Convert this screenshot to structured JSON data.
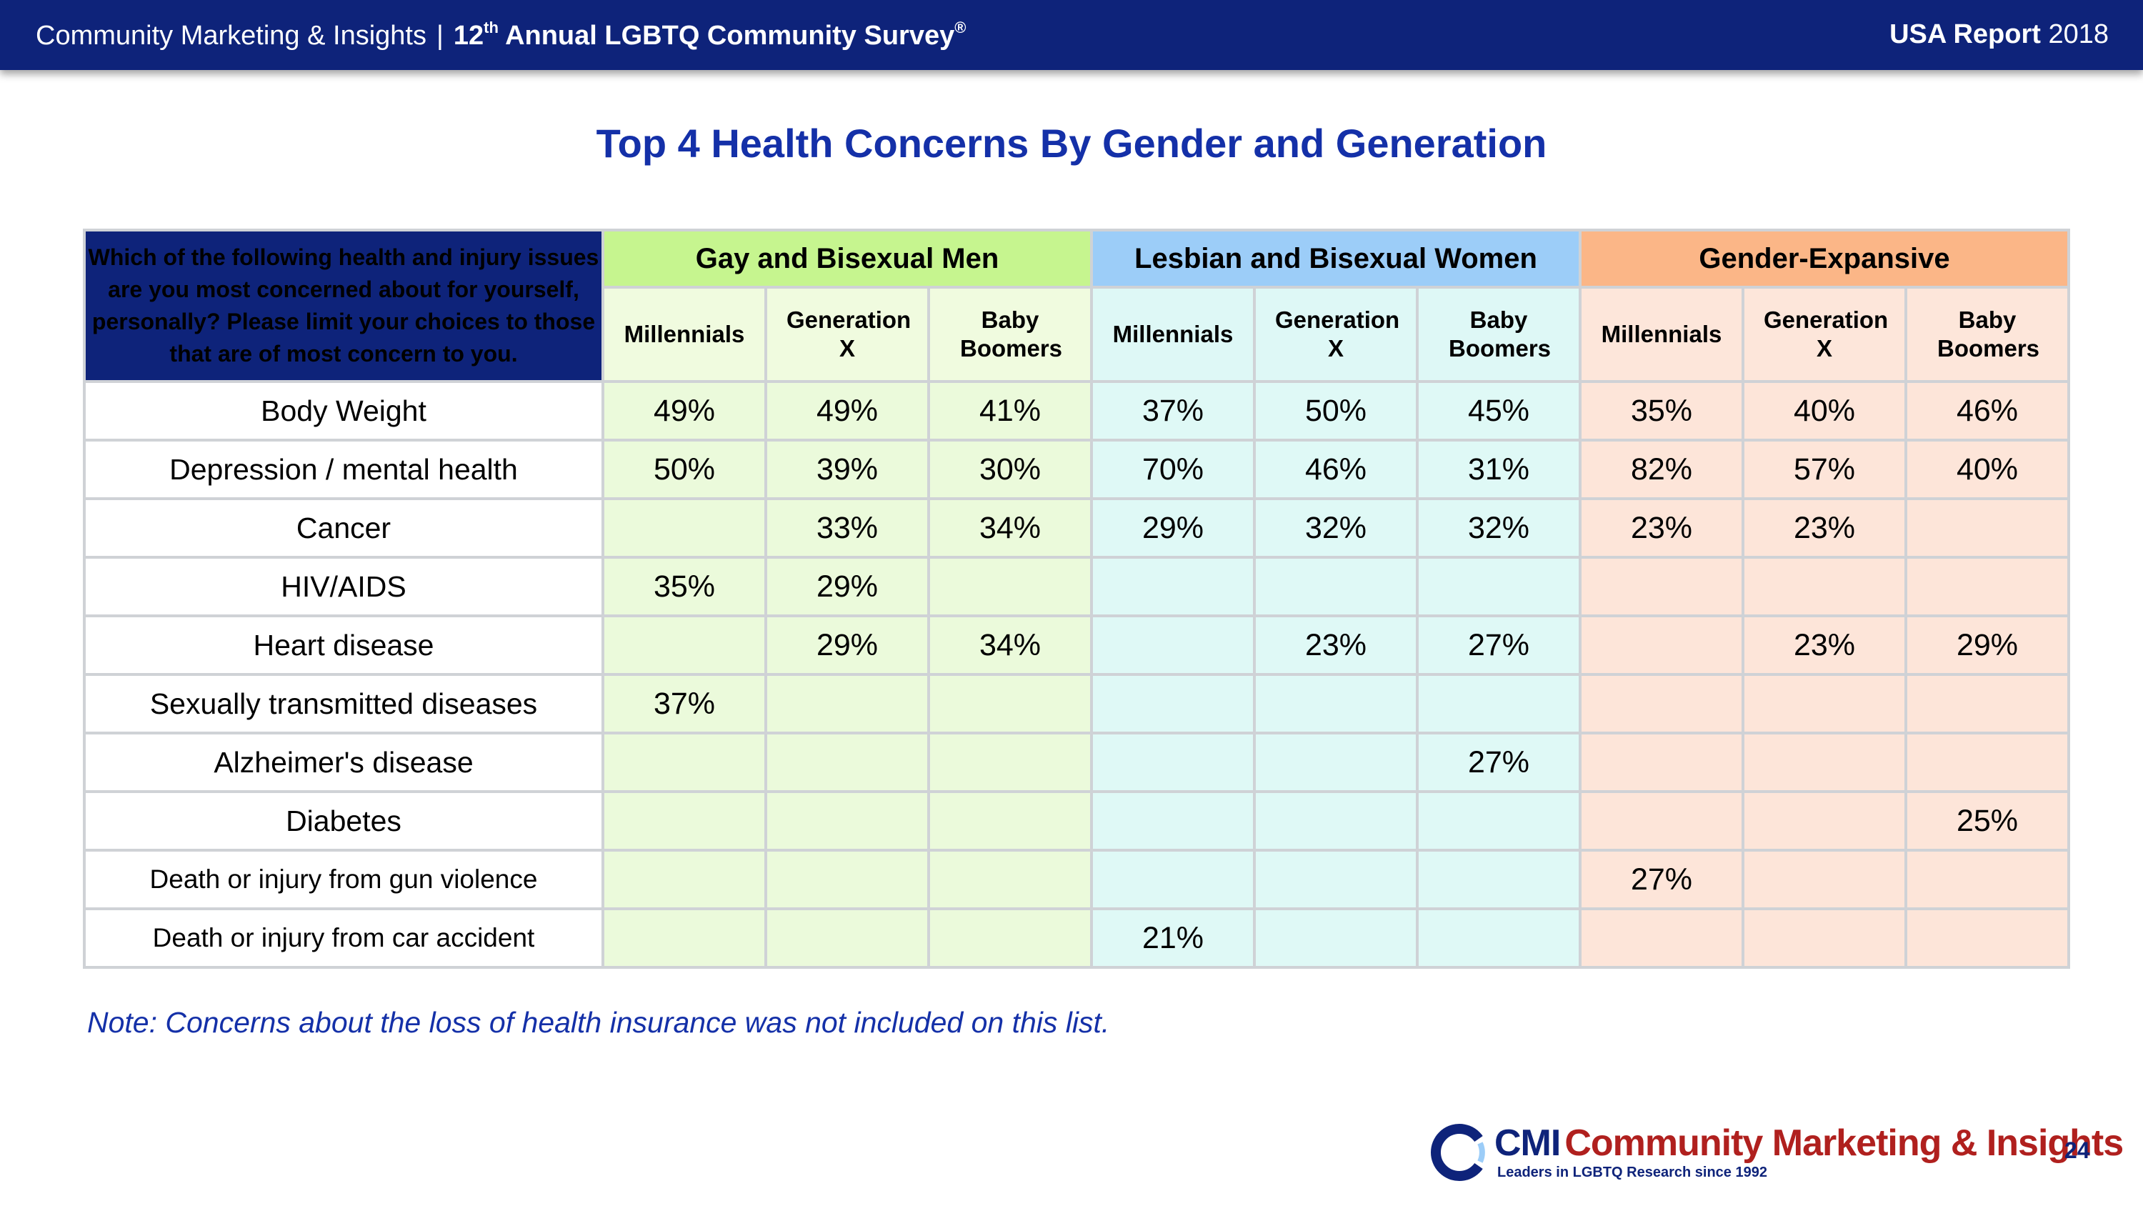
{
  "header": {
    "org": "Community Marketing & Insights",
    "separator": "|",
    "survey_ordinal": "12",
    "survey_ordinal_suffix": "th",
    "survey_name": "Annual LGBTQ Community Survey",
    "survey_mark": "®",
    "report_label": "USA Report",
    "report_year": "2018"
  },
  "chart_data": {
    "type": "table",
    "title": "Top 4 Health Concerns By Gender and Generation",
    "question": "Which of the following health and injury issues are you most concerned about for yourself, personally? Please limit your choices to those that are of most concern to you.",
    "groups": [
      {
        "name": "Gay and Bisexual Men",
        "subgroups": [
          "Millennials",
          "Generation X",
          "Baby Boomers"
        ]
      },
      {
        "name": "Lesbian and Bisexual Women",
        "subgroups": [
          "Millennials",
          "Generation X",
          "Baby Boomers"
        ]
      },
      {
        "name": "Gender-Expansive",
        "subgroups": [
          "Millennials",
          "Generation X",
          "Baby Boomers"
        ]
      }
    ],
    "rows": [
      {
        "label": "Body Weight",
        "values": [
          "49%",
          "49%",
          "41%",
          "37%",
          "50%",
          "45%",
          "35%",
          "40%",
          "46%"
        ]
      },
      {
        "label": "Depression / mental health",
        "values": [
          "50%",
          "39%",
          "30%",
          "70%",
          "46%",
          "31%",
          "82%",
          "57%",
          "40%"
        ]
      },
      {
        "label": "Cancer",
        "values": [
          "",
          "33%",
          "34%",
          "29%",
          "32%",
          "32%",
          "23%",
          "23%",
          ""
        ]
      },
      {
        "label": "HIV/AIDS",
        "values": [
          "35%",
          "29%",
          "",
          "",
          "",
          "",
          "",
          "",
          ""
        ]
      },
      {
        "label": "Heart disease",
        "values": [
          "",
          "29%",
          "34%",
          "",
          "23%",
          "27%",
          "",
          "23%",
          "29%"
        ]
      },
      {
        "label": "Sexually transmitted diseases",
        "values": [
          "37%",
          "",
          "",
          "",
          "",
          "",
          "",
          "",
          ""
        ]
      },
      {
        "label": "Alzheimer's disease",
        "values": [
          "",
          "",
          "",
          "",
          "",
          "27%",
          "",
          "",
          ""
        ]
      },
      {
        "label": "Diabetes",
        "values": [
          "",
          "",
          "",
          "",
          "",
          "",
          "",
          "",
          "25%"
        ]
      },
      {
        "label": "Death or injury from gun violence",
        "values": [
          "",
          "",
          "",
          "",
          "",
          "",
          "27%",
          "",
          ""
        ]
      },
      {
        "label": "Death or injury from car accident",
        "values": [
          "",
          "",
          "",
          "21%",
          "",
          "",
          "",
          "",
          ""
        ]
      }
    ],
    "group_colors": {
      "gay_bisexual_men": "#c6f58f",
      "lesbian_bisexual_women": "#9ccdf8",
      "gender_expansive": "#fbb687"
    }
  },
  "note": "Note: Concerns about the loss of health insurance was not included on this list.",
  "footer": {
    "logo_abbrev": "CMI",
    "logo_name": "Community Marketing & Insights",
    "logo_tagline": "Leaders in LGBTQ Research since 1992",
    "page_number": "24"
  },
  "colors": {
    "header_bg": "#0e237a",
    "title": "#1430a8",
    "logo_red": "#b0201e"
  }
}
